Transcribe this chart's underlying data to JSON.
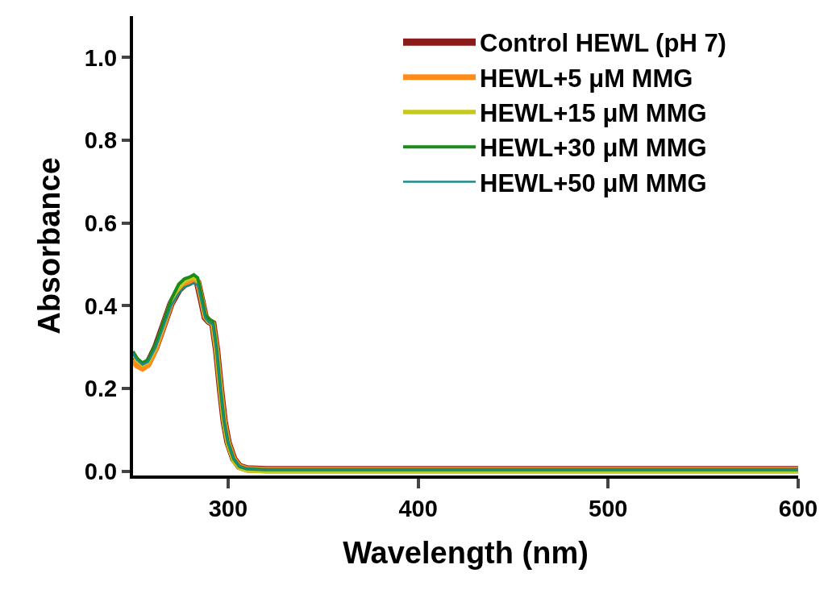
{
  "chart_data": {
    "type": "line",
    "xlabel": "Wavelength (nm)",
    "ylabel": "Absorbance",
    "x": [
      250,
      252,
      255,
      258,
      262,
      266,
      270,
      274,
      277,
      280,
      282,
      284,
      286,
      288,
      290,
      292,
      294,
      296,
      298,
      300,
      303,
      306,
      310,
      320,
      400,
      500,
      600
    ],
    "series": [
      {
        "name": "Control HEWL (pH 7)",
        "color": "#8b1a1a",
        "values": [
          0.28,
          0.265,
          0.255,
          0.262,
          0.3,
          0.352,
          0.405,
          0.438,
          0.452,
          0.458,
          0.462,
          0.456,
          0.415,
          0.372,
          0.362,
          0.357,
          0.292,
          0.2,
          0.12,
          0.07,
          0.03,
          0.012,
          0.006,
          0.004,
          0.004,
          0.004,
          0.004
        ]
      },
      {
        "name": "HEWL+5 μM MMG",
        "color": "#ff8c1a",
        "values": [
          0.27,
          0.255,
          0.248,
          0.257,
          0.297,
          0.35,
          0.405,
          0.44,
          0.454,
          0.46,
          0.465,
          0.458,
          0.417,
          0.373,
          0.362,
          0.357,
          0.292,
          0.2,
          0.12,
          0.07,
          0.03,
          0.012,
          0.006,
          0.004,
          0.004,
          0.004,
          0.004
        ]
      },
      {
        "name": "HEWL+15 μM MMG",
        "color": "#c8c81a",
        "values": [
          0.285,
          0.27,
          0.258,
          0.265,
          0.302,
          0.355,
          0.41,
          0.445,
          0.46,
          0.466,
          0.47,
          0.462,
          0.418,
          0.374,
          0.363,
          0.357,
          0.29,
          0.196,
          0.115,
          0.065,
          0.025,
          0.008,
          0.002,
          0.0,
          0.0,
          0.0,
          0.0
        ]
      },
      {
        "name": "HEWL+30 μM MMG",
        "color": "#1a8c1a",
        "values": [
          0.29,
          0.273,
          0.262,
          0.27,
          0.308,
          0.36,
          0.415,
          0.452,
          0.465,
          0.47,
          0.475,
          0.468,
          0.425,
          0.378,
          0.368,
          0.362,
          0.295,
          0.2,
          0.12,
          0.07,
          0.03,
          0.012,
          0.006,
          0.004,
          0.004,
          0.004,
          0.004
        ]
      },
      {
        "name": "HEWL+50 μM MMG",
        "color": "#1a8a8a",
        "values": [
          0.285,
          0.27,
          0.258,
          0.265,
          0.3,
          0.35,
          0.4,
          0.43,
          0.445,
          0.45,
          0.455,
          0.45,
          0.41,
          0.37,
          0.36,
          0.355,
          0.29,
          0.2,
          0.12,
          0.07,
          0.03,
          0.012,
          0.006,
          0.004,
          0.004,
          0.004,
          0.004
        ]
      }
    ],
    "xlim": [
      250,
      600
    ],
    "xticks": [
      300,
      400,
      500,
      600
    ],
    "ylim": [
      -0.01,
      1.1
    ],
    "yticks": [
      {
        "value": 0,
        "label": "0.0"
      },
      0.2,
      0.4,
      0.6,
      0.8,
      {
        "value": 1,
        "label": "1.0"
      }
    ],
    "grid": false,
    "legend": "top right",
    "marker": "none",
    "line_style": "solid"
  }
}
